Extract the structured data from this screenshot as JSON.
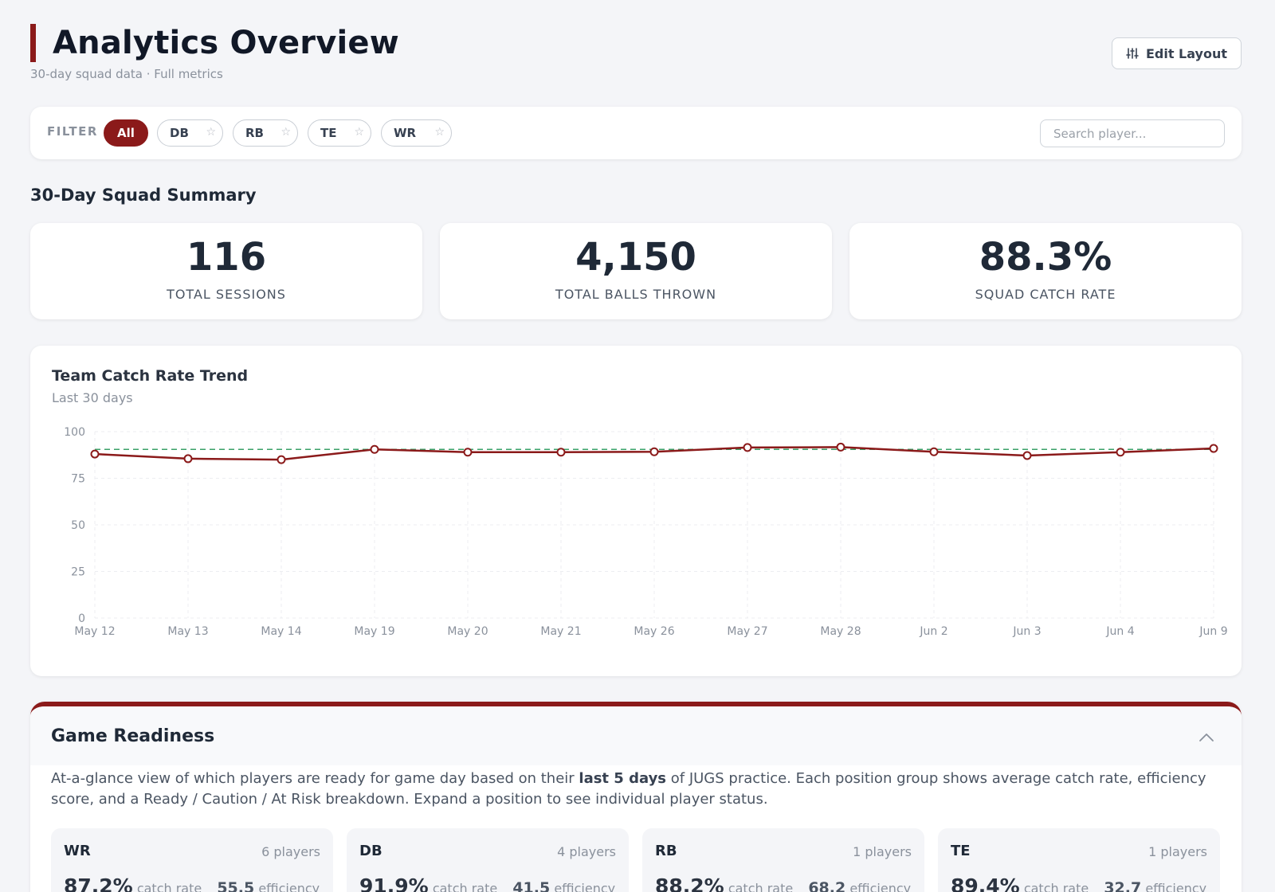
{
  "header": {
    "title": "Analytics Overview",
    "subtitle": "30-day squad data · Full metrics",
    "edit_layout_label": "Edit Layout"
  },
  "filter": {
    "label": "FILTER",
    "chips": [
      {
        "label": "All",
        "active": true
      },
      {
        "label": "DB",
        "favorite_icon": "star-outline-icon"
      },
      {
        "label": "RB",
        "favorite_icon": "star-outline-icon"
      },
      {
        "label": "TE",
        "favorite_icon": "star-outline-icon"
      },
      {
        "label": "WR",
        "favorite_icon": "star-outline-icon"
      }
    ],
    "star_glyph": "☆",
    "search_placeholder": "Search player..."
  },
  "summary": {
    "title": "30-Day Squad Summary",
    "stats": [
      {
        "value": "116",
        "label": "TOTAL SESSIONS"
      },
      {
        "value": "4,150",
        "label": "TOTAL BALLS THROWN"
      },
      {
        "value": "88.3%",
        "label": "SQUAD CATCH RATE"
      }
    ]
  },
  "trend": {
    "title": "Team Catch Rate Trend",
    "subtitle": "Last 30 days"
  },
  "chart_data": {
    "type": "line",
    "x": [
      "May 12",
      "May 13",
      "May 14",
      "May 19",
      "May 20",
      "May 21",
      "May 26",
      "May 27",
      "May 28",
      "Jun 2",
      "Jun 3",
      "Jun 4",
      "Jun 9"
    ],
    "series": [
      {
        "values": [
          88,
          85.5,
          85,
          90.5,
          89,
          89,
          89.2,
          91.5,
          91.7,
          89.2,
          87.2,
          89,
          91
        ],
        "color": "#8b1a1a"
      }
    ],
    "reference_line": {
      "value": 90.5,
      "style": "dashed",
      "color": "#3aa068"
    },
    "ylim": [
      0,
      100
    ],
    "yticks": [
      0,
      25,
      50,
      75,
      100
    ],
    "grid": true,
    "xlabel": "",
    "ylabel": "",
    "title": "Team Catch Rate Trend"
  },
  "readiness": {
    "title": "Game Readiness",
    "desc_before": "At-a-glance view of which players are ready for game day based on their ",
    "desc_bold": "last 5 days",
    "desc_after": " of JUGS practice. Each position group shows average catch rate, efficiency score, and a Ready / Caution / At Risk breakdown. Expand a position to see individual player status.",
    "positions": [
      {
        "name": "WR",
        "players": "6 players",
        "catch_rate": "87.2%",
        "catch_unit": "catch rate",
        "efficiency": "55.5",
        "eff_unit": "efficiency"
      },
      {
        "name": "DB",
        "players": "4 players",
        "catch_rate": "91.9%",
        "catch_unit": "catch rate",
        "efficiency": "41.5",
        "eff_unit": "efficiency"
      },
      {
        "name": "RB",
        "players": "1 players",
        "catch_rate": "88.2%",
        "catch_unit": "catch rate",
        "efficiency": "68.2",
        "eff_unit": "efficiency"
      },
      {
        "name": "TE",
        "players": "1 players",
        "catch_rate": "89.4%",
        "catch_unit": "catch rate",
        "efficiency": "32.7",
        "eff_unit": "efficiency"
      }
    ]
  }
}
